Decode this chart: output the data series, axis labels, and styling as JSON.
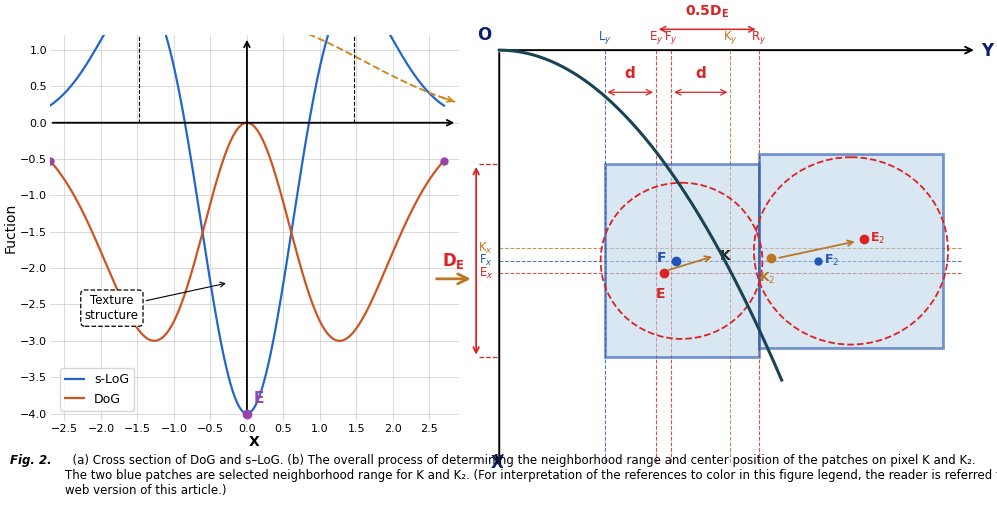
{
  "fig_width": 9.97,
  "fig_height": 5.07,
  "dpi": 100,
  "left_panel": {
    "slog_color": "#2266CC",
    "dog_color": "#CC5522",
    "dashed_color": "#CC8822",
    "point_color_red": "#DD2222",
    "point_color_purple": "#9944AA",
    "grid_color": "#CCCCCC",
    "DE_color": "#DD2222",
    "xlabel": "X",
    "ylabel": "Fuction",
    "xlim": [
      -2.7,
      2.9
    ],
    "ylim": [
      -4.1,
      1.2
    ],
    "xticks": [
      -2.5,
      -2.0,
      -1.5,
      -1.0,
      -0.5,
      0.0,
      0.5,
      1.0,
      1.5,
      2.0,
      2.5
    ],
    "yticks": [
      -4.0,
      -3.5,
      -3.0,
      -2.5,
      -2.0,
      -1.5,
      -1.0,
      -0.5,
      0.0,
      0.5,
      1.0
    ]
  },
  "right_panel": {
    "rect_fill": "#B8D4E8",
    "rect_edge": "#1144AA",
    "circle_color": "#DD2222",
    "curve_color": "#1A4455",
    "red_color": "#DD2222",
    "blue_color": "#2255BB",
    "orange_color": "#BB7722",
    "navy": "#0A1F6E"
  },
  "caption_bold": "Fig. 2.",
  "caption_rest": "  (a) Cross section of DoG and s–LoG. (b) The overall process of determining the neighborhood range and center position of the patches on pixel K and K₂.\nThe two blue patches are selected neighborhood range for K and K₂. (For interpretation of the references to color in this figure legend, the reader is referred to the\nweb version of this article.)"
}
